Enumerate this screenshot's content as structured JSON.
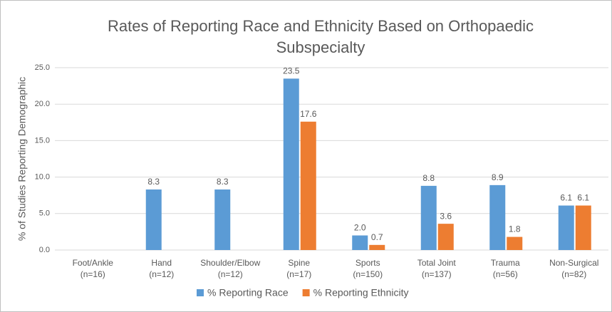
{
  "chart_data": {
    "type": "bar",
    "title": [
      "Rates of Reporting Race and Ethnicity Based on Orthopaedic",
      "Subspecialty"
    ],
    "y_label": "% of Studies Reporting Demographic",
    "categories": [
      [
        "Foot/Ankle",
        "(n=16)"
      ],
      [
        "Hand",
        "(n=12)"
      ],
      [
        "Shoulder/Elbow",
        "(n=12)"
      ],
      [
        "Spine",
        "(n=17)"
      ],
      [
        "Sports",
        "(n=150)"
      ],
      [
        "Total Joint",
        "(n=137)"
      ],
      [
        "Trauma",
        "(n=56)"
      ],
      [
        "Non-Surgical",
        "(n=82)"
      ]
    ],
    "series": [
      {
        "name": "% Reporting Race",
        "color": "#5b9bd5",
        "values": [
          0,
          8.3,
          8.3,
          23.5,
          2.0,
          8.8,
          8.9,
          6.1
        ],
        "value_labels": [
          null,
          "8.3",
          "8.3",
          "23.5",
          "2.0",
          "8.8",
          "8.9",
          "6.1"
        ]
      },
      {
        "name": "% Reporting Ethnicity",
        "color": "#ed7d31",
        "values": [
          0,
          0,
          0,
          17.6,
          0.7,
          3.6,
          1.8,
          6.1
        ],
        "value_labels": [
          null,
          null,
          null,
          "17.6",
          "0.7",
          "3.6",
          "1.8",
          "6.1"
        ]
      }
    ],
    "ylim": [
      0,
      25
    ],
    "yticks": [
      {
        "value": 0,
        "label": "0.0"
      },
      {
        "value": 5,
        "label": "5.0"
      },
      {
        "value": 10,
        "label": "10.0"
      },
      {
        "value": 15,
        "label": "15.0"
      },
      {
        "value": 20,
        "label": "20.0"
      },
      {
        "value": 25,
        "label": "25.0"
      }
    ],
    "grid": true,
    "legend": "bottom"
  }
}
